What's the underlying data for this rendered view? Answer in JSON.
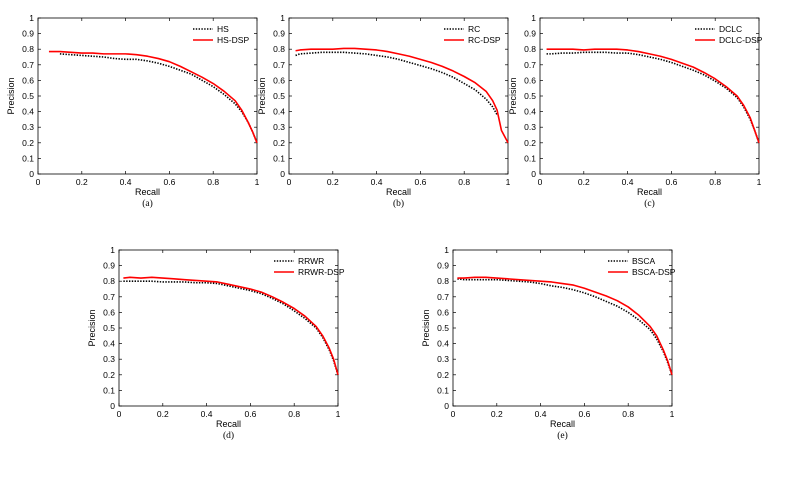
{
  "chart_data": [
    {
      "type": "line",
      "caption": "(a)",
      "xlabel": "Recall",
      "ylabel": "Precision",
      "xlim": [
        0,
        1
      ],
      "ylim": [
        0,
        1
      ],
      "grid": false,
      "legend_position": "top-right",
      "xticks": [
        "0",
        "0.2",
        "0.4",
        "0.6",
        "0.8",
        "1"
      ],
      "yticks": [
        "0",
        "0.1",
        "0.2",
        "0.3",
        "0.4",
        "0.5",
        "0.6",
        "0.7",
        "0.8",
        "0.9",
        "1"
      ],
      "series": [
        {
          "name": "HS",
          "color": "#000000",
          "style": "dotted",
          "x": [
            0.1,
            0.15,
            0.2,
            0.25,
            0.3,
            0.35,
            0.4,
            0.45,
            0.5,
            0.55,
            0.6,
            0.65,
            0.7,
            0.75,
            0.8,
            0.85,
            0.9,
            0.93,
            0.96,
            0.98,
            1.0
          ],
          "y": [
            0.77,
            0.765,
            0.76,
            0.755,
            0.75,
            0.74,
            0.735,
            0.735,
            0.725,
            0.71,
            0.69,
            0.665,
            0.64,
            0.6,
            0.56,
            0.51,
            0.45,
            0.4,
            0.33,
            0.27,
            0.2
          ]
        },
        {
          "name": "HS-DSP",
          "color": "#ff0000",
          "style": "solid",
          "x": [
            0.05,
            0.1,
            0.15,
            0.2,
            0.25,
            0.3,
            0.35,
            0.4,
            0.45,
            0.5,
            0.55,
            0.6,
            0.65,
            0.7,
            0.75,
            0.8,
            0.85,
            0.9,
            0.93,
            0.96,
            0.98,
            1.0
          ],
          "y": [
            0.785,
            0.785,
            0.78,
            0.775,
            0.775,
            0.77,
            0.77,
            0.77,
            0.765,
            0.755,
            0.74,
            0.72,
            0.69,
            0.655,
            0.62,
            0.58,
            0.53,
            0.47,
            0.41,
            0.33,
            0.27,
            0.2
          ]
        }
      ]
    },
    {
      "type": "line",
      "caption": "(b)",
      "xlabel": "Recall",
      "ylabel": "Precision",
      "xlim": [
        0,
        1
      ],
      "ylim": [
        0,
        1
      ],
      "grid": false,
      "legend_position": "top-right",
      "xticks": [
        "0",
        "0.2",
        "0.4",
        "0.6",
        "0.8",
        "1"
      ],
      "yticks": [
        "0",
        "0.1",
        "0.2",
        "0.3",
        "0.4",
        "0.5",
        "0.6",
        "0.7",
        "0.8",
        "0.9",
        "1"
      ],
      "series": [
        {
          "name": "RC",
          "color": "#000000",
          "style": "dotted",
          "x": [
            0.03,
            0.05,
            0.1,
            0.15,
            0.2,
            0.25,
            0.3,
            0.35,
            0.4,
            0.45,
            0.5,
            0.55,
            0.6,
            0.65,
            0.7,
            0.75,
            0.8,
            0.85,
            0.9,
            0.93,
            0.95
          ],
          "y": [
            0.76,
            0.77,
            0.775,
            0.78,
            0.78,
            0.78,
            0.775,
            0.77,
            0.76,
            0.75,
            0.735,
            0.715,
            0.695,
            0.675,
            0.65,
            0.62,
            0.58,
            0.54,
            0.48,
            0.43,
            0.38
          ]
        },
        {
          "name": "RC-DSP",
          "color": "#ff0000",
          "style": "solid",
          "x": [
            0.03,
            0.05,
            0.1,
            0.15,
            0.2,
            0.25,
            0.3,
            0.35,
            0.4,
            0.45,
            0.5,
            0.55,
            0.6,
            0.65,
            0.7,
            0.75,
            0.8,
            0.85,
            0.9,
            0.93,
            0.95,
            0.97,
            1.0
          ],
          "y": [
            0.79,
            0.795,
            0.8,
            0.8,
            0.8,
            0.805,
            0.805,
            0.8,
            0.795,
            0.785,
            0.77,
            0.755,
            0.735,
            0.715,
            0.69,
            0.66,
            0.625,
            0.585,
            0.53,
            0.47,
            0.41,
            0.28,
            0.2
          ]
        }
      ]
    },
    {
      "type": "line",
      "caption": "(c)",
      "xlabel": "Recall",
      "ylabel": "Precision",
      "xlim": [
        0,
        1
      ],
      "ylim": [
        0,
        1
      ],
      "grid": false,
      "legend_position": "top-right",
      "xticks": [
        "0",
        "0.2",
        "0.4",
        "0.6",
        "0.8",
        "1"
      ],
      "yticks": [
        "0",
        "0.1",
        "0.2",
        "0.3",
        "0.4",
        "0.5",
        "0.6",
        "0.7",
        "0.8",
        "0.9",
        "1"
      ],
      "series": [
        {
          "name": "DCLC",
          "color": "#000000",
          "style": "dotted",
          "x": [
            0.03,
            0.05,
            0.1,
            0.15,
            0.2,
            0.25,
            0.3,
            0.35,
            0.4,
            0.45,
            0.5,
            0.55,
            0.6,
            0.65,
            0.7,
            0.75,
            0.8,
            0.85,
            0.9,
            0.93,
            0.96,
            0.98,
            1.0
          ],
          "y": [
            0.77,
            0.77,
            0.775,
            0.775,
            0.78,
            0.78,
            0.78,
            0.775,
            0.775,
            0.765,
            0.75,
            0.735,
            0.715,
            0.69,
            0.665,
            0.635,
            0.595,
            0.55,
            0.49,
            0.43,
            0.35,
            0.28,
            0.2
          ]
        },
        {
          "name": "DCLC-DSP",
          "color": "#ff0000",
          "style": "solid",
          "x": [
            0.03,
            0.05,
            0.1,
            0.15,
            0.2,
            0.25,
            0.3,
            0.35,
            0.4,
            0.45,
            0.5,
            0.55,
            0.6,
            0.65,
            0.7,
            0.75,
            0.8,
            0.85,
            0.9,
            0.93,
            0.96,
            0.98,
            1.0
          ],
          "y": [
            0.8,
            0.8,
            0.8,
            0.8,
            0.795,
            0.8,
            0.8,
            0.8,
            0.795,
            0.785,
            0.77,
            0.755,
            0.735,
            0.71,
            0.685,
            0.65,
            0.61,
            0.56,
            0.5,
            0.44,
            0.36,
            0.28,
            0.2
          ]
        }
      ]
    },
    {
      "type": "line",
      "caption": "(d)",
      "xlabel": "Recall",
      "ylabel": "Precision",
      "xlim": [
        0,
        1
      ],
      "ylim": [
        0,
        1
      ],
      "grid": false,
      "legend_position": "top-right",
      "xticks": [
        "0",
        "0.2",
        "0.4",
        "0.6",
        "0.8",
        "1"
      ],
      "yticks": [
        "0",
        "0.1",
        "0.2",
        "0.3",
        "0.4",
        "0.5",
        "0.6",
        "0.7",
        "0.8",
        "0.9",
        "1"
      ],
      "series": [
        {
          "name": "RRWR",
          "color": "#000000",
          "style": "dotted",
          "x": [
            0.02,
            0.05,
            0.1,
            0.15,
            0.2,
            0.25,
            0.3,
            0.35,
            0.4,
            0.45,
            0.5,
            0.55,
            0.6,
            0.65,
            0.7,
            0.75,
            0.8,
            0.85,
            0.9,
            0.93,
            0.96,
            0.98,
            1.0
          ],
          "y": [
            0.8,
            0.8,
            0.8,
            0.8,
            0.795,
            0.795,
            0.795,
            0.79,
            0.79,
            0.785,
            0.77,
            0.755,
            0.74,
            0.72,
            0.69,
            0.655,
            0.61,
            0.56,
            0.5,
            0.44,
            0.36,
            0.29,
            0.2
          ]
        },
        {
          "name": "RRWR-DSP",
          "color": "#ff0000",
          "style": "solid",
          "x": [
            0.02,
            0.05,
            0.1,
            0.15,
            0.2,
            0.25,
            0.3,
            0.35,
            0.4,
            0.45,
            0.5,
            0.55,
            0.6,
            0.65,
            0.7,
            0.75,
            0.8,
            0.85,
            0.9,
            0.93,
            0.96,
            0.98,
            1.0
          ],
          "y": [
            0.82,
            0.825,
            0.82,
            0.825,
            0.82,
            0.815,
            0.81,
            0.805,
            0.8,
            0.795,
            0.78,
            0.765,
            0.75,
            0.73,
            0.7,
            0.665,
            0.625,
            0.575,
            0.51,
            0.45,
            0.37,
            0.3,
            0.2
          ]
        }
      ]
    },
    {
      "type": "line",
      "caption": "(e)",
      "xlabel": "Recall",
      "ylabel": "Precision",
      "xlim": [
        0,
        1
      ],
      "ylim": [
        0,
        1
      ],
      "grid": false,
      "legend_position": "top-right",
      "xticks": [
        "0",
        "0.2",
        "0.4",
        "0.6",
        "0.8",
        "1"
      ],
      "yticks": [
        "0",
        "0.1",
        "0.2",
        "0.3",
        "0.4",
        "0.5",
        "0.6",
        "0.7",
        "0.8",
        "0.9",
        "1"
      ],
      "series": [
        {
          "name": "BSCA",
          "color": "#000000",
          "style": "dotted",
          "x": [
            0.02,
            0.05,
            0.1,
            0.15,
            0.2,
            0.25,
            0.3,
            0.35,
            0.4,
            0.45,
            0.5,
            0.55,
            0.6,
            0.65,
            0.7,
            0.75,
            0.8,
            0.85,
            0.9,
            0.93,
            0.96,
            0.98,
            1.0
          ],
          "y": [
            0.815,
            0.81,
            0.81,
            0.81,
            0.81,
            0.805,
            0.8,
            0.795,
            0.785,
            0.77,
            0.76,
            0.745,
            0.725,
            0.7,
            0.67,
            0.64,
            0.6,
            0.55,
            0.49,
            0.43,
            0.35,
            0.28,
            0.2
          ]
        },
        {
          "name": "BSCA-DSP",
          "color": "#ff0000",
          "style": "solid",
          "x": [
            0.02,
            0.05,
            0.1,
            0.15,
            0.2,
            0.25,
            0.3,
            0.35,
            0.4,
            0.45,
            0.5,
            0.55,
            0.6,
            0.65,
            0.7,
            0.75,
            0.8,
            0.85,
            0.9,
            0.93,
            0.96,
            0.98,
            1.0
          ],
          "y": [
            0.82,
            0.82,
            0.825,
            0.825,
            0.82,
            0.815,
            0.81,
            0.805,
            0.8,
            0.795,
            0.785,
            0.775,
            0.755,
            0.73,
            0.705,
            0.675,
            0.635,
            0.58,
            0.51,
            0.45,
            0.36,
            0.29,
            0.2
          ]
        }
      ]
    }
  ]
}
